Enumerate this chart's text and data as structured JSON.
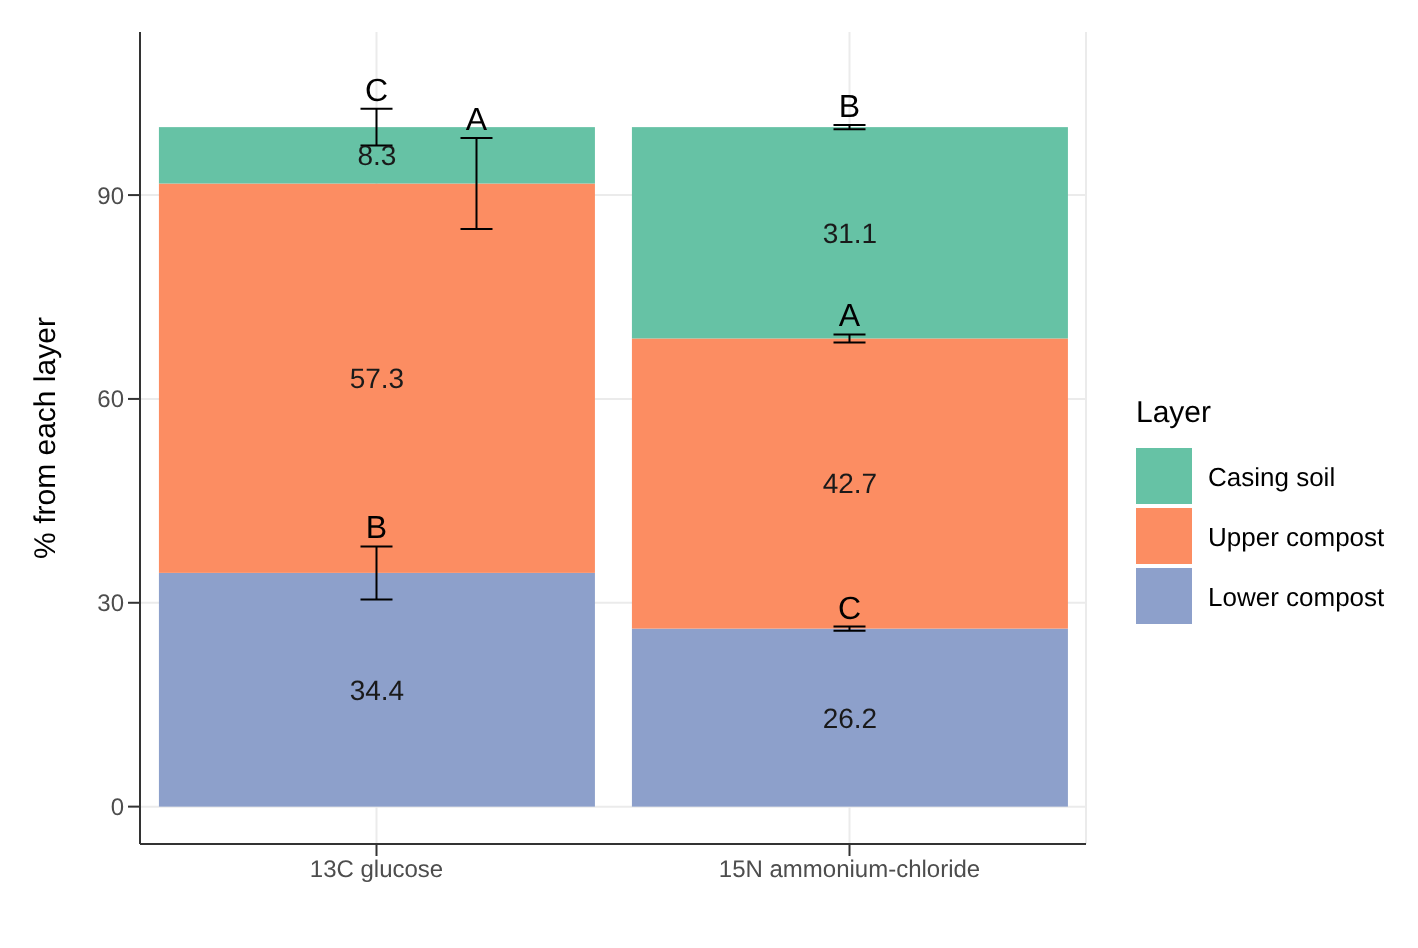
{
  "chart_data": {
    "type": "bar",
    "stacked": true,
    "ylabel": "% from each layer",
    "legend_title": "Layer",
    "legend": "right",
    "grid": true,
    "data_labels": true,
    "categories": [
      "13C glucose",
      "15N ammonium-chloride"
    ],
    "ylim": [
      -5.5,
      114
    ],
    "yticks": [
      0,
      30,
      60,
      90
    ],
    "series": [
      {
        "name": "Lower compost",
        "color": "#8da0cb",
        "values": [
          34.4,
          26.2
        ],
        "errors": [
          3.9,
          0.3
        ]
      },
      {
        "name": "Upper compost",
        "color": "#fc8d62",
        "values": [
          57.3,
          42.7
        ],
        "errors": [
          6.7,
          0.6
        ]
      },
      {
        "name": "Casing soil",
        "color": "#66c2a5",
        "values": [
          8.3,
          31.1
        ],
        "errors": [
          2.7,
          0.3
        ]
      }
    ],
    "annotations": [
      {
        "text": "C",
        "x": "13C glucose",
        "y": 100
      },
      {
        "text": "A",
        "x": "13C glucose",
        "y": 98.4
      },
      {
        "text": "B",
        "x": "13C glucose",
        "y": 34.4
      },
      {
        "text": "B",
        "x": "15N ammonium-chloride",
        "y": 100
      },
      {
        "text": "A",
        "x": "15N ammonium-chloride",
        "y": 68.9
      },
      {
        "text": "C",
        "x": "15N ammonium-chloride",
        "y": 26.2
      }
    ]
  }
}
